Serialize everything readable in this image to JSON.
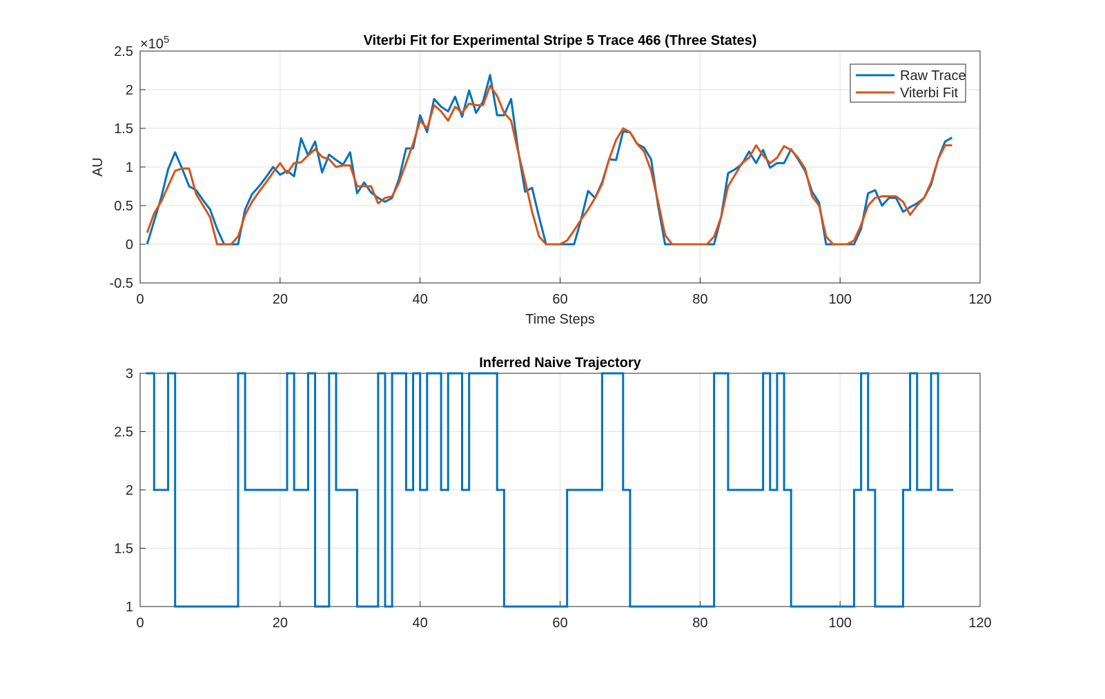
{
  "chart_data": [
    {
      "type": "line",
      "title": "Viterbi Fit for Experimental Stripe 5 Trace 466 (Three States)",
      "xlabel": "Time Steps",
      "ylabel": "AU",
      "y_multiplier": {
        "base": "×10",
        "power": "5"
      },
      "xlim": [
        0,
        120
      ],
      "xticks": [
        0,
        20,
        40,
        60,
        80,
        100,
        120
      ],
      "ylim": [
        -0.5,
        2.5
      ],
      "yticks": [
        -0.5,
        0,
        0.5,
        1,
        1.5,
        2,
        2.5
      ],
      "grid": true,
      "legend": "upper right",
      "x": [
        1,
        2,
        3,
        4,
        5,
        6,
        7,
        8,
        9,
        10,
        11,
        12,
        13,
        14,
        15,
        16,
        17,
        18,
        19,
        20,
        21,
        22,
        23,
        24,
        25,
        26,
        27,
        28,
        29,
        30,
        31,
        32,
        33,
        34,
        35,
        36,
        37,
        38,
        39,
        40,
        41,
        42,
        43,
        44,
        45,
        46,
        47,
        48,
        49,
        50,
        51,
        52,
        53,
        54,
        55,
        56,
        57,
        58,
        59,
        60,
        61,
        62,
        63,
        64,
        65,
        66,
        67,
        68,
        69,
        70,
        71,
        72,
        73,
        74,
        75,
        76,
        77,
        78,
        79,
        80,
        81,
        82,
        83,
        84,
        85,
        86,
        87,
        88,
        89,
        90,
        91,
        92,
        93,
        94,
        95,
        96,
        97,
        98,
        99,
        100,
        101,
        102,
        103,
        104,
        105,
        106,
        107,
        108,
        109,
        110,
        111,
        112,
        113,
        114,
        115,
        116
      ],
      "series": [
        {
          "name": "Raw Trace",
          "color": "#0072bd",
          "values": [
            0,
            0.3,
            0.6,
            0.97,
            1.19,
            0.98,
            0.75,
            0.7,
            0.57,
            0.45,
            0.2,
            0,
            0,
            0,
            0.45,
            0.65,
            0.75,
            0.87,
            1.0,
            0.9,
            0.95,
            0.88,
            1.37,
            1.15,
            1.33,
            0.93,
            1.16,
            1.09,
            1.03,
            1.19,
            0.66,
            0.8,
            0.67,
            0.6,
            0.55,
            0.6,
            0.85,
            1.24,
            1.24,
            1.67,
            1.45,
            1.88,
            1.78,
            1.72,
            1.91,
            1.65,
            1.99,
            1.7,
            1.85,
            2.19,
            1.67,
            1.67,
            1.88,
            1.22,
            0.68,
            0.73,
            0.35,
            0,
            0,
            0,
            0,
            0,
            0.32,
            0.69,
            0.6,
            0.8,
            1.1,
            1.09,
            1.46,
            1.45,
            1.3,
            1.25,
            1.1,
            0.5,
            0,
            0,
            0,
            0,
            0,
            0,
            0,
            0,
            0.35,
            0.92,
            0.97,
            1.04,
            1.2,
            1.05,
            1.22,
            0.99,
            1.05,
            1.05,
            1.23,
            1.1,
            0.95,
            0.68,
            0.54,
            0,
            0,
            0,
            0,
            0,
            0.2,
            0.66,
            0.7,
            0.5,
            0.6,
            0.6,
            0.42,
            0.48,
            0.53,
            0.6,
            0.77,
            1.1,
            1.33,
            1.38
          ]
        },
        {
          "name": "Viterbi Fit",
          "color": "#d95319",
          "values": [
            0.15,
            0.4,
            0.55,
            0.75,
            0.95,
            0.98,
            0.98,
            0.65,
            0.5,
            0.35,
            0,
            0,
            0,
            0.1,
            0.38,
            0.55,
            0.68,
            0.8,
            0.93,
            1.05,
            0.92,
            1.05,
            1.06,
            1.15,
            1.23,
            1.13,
            1.1,
            1.0,
            1.02,
            1.02,
            0.75,
            0.75,
            0.75,
            0.53,
            0.6,
            0.62,
            0.8,
            1.05,
            1.3,
            1.6,
            1.5,
            1.8,
            1.72,
            1.6,
            1.78,
            1.7,
            1.82,
            1.8,
            1.8,
            2.05,
            1.92,
            1.7,
            1.6,
            1.2,
            0.82,
            0.42,
            0.1,
            0,
            0,
            0,
            0.05,
            0.18,
            0.32,
            0.45,
            0.6,
            0.78,
            1.1,
            1.35,
            1.5,
            1.45,
            1.3,
            1.2,
            0.95,
            0.55,
            0.12,
            0,
            0,
            0,
            0,
            0,
            0,
            0.1,
            0.35,
            0.75,
            0.9,
            1.05,
            1.12,
            1.28,
            1.15,
            1.05,
            1.12,
            1.27,
            1.22,
            1.12,
            0.98,
            0.62,
            0.5,
            0.1,
            0,
            0,
            0,
            0.05,
            0.25,
            0.5,
            0.6,
            0.62,
            0.62,
            0.62,
            0.55,
            0.38,
            0.5,
            0.6,
            0.8,
            1.1,
            1.28,
            1.28
          ]
        }
      ]
    },
    {
      "type": "stairs",
      "title": "Inferred Naive Trajectory",
      "xlim": [
        0,
        120
      ],
      "xticks": [
        0,
        20,
        40,
        60,
        80,
        100,
        120
      ],
      "ylim": [
        1,
        3
      ],
      "yticks": [
        1,
        1.5,
        2,
        2.5,
        3
      ],
      "grid": true,
      "x": [
        1,
        2,
        3,
        4,
        5,
        6,
        7,
        8,
        9,
        10,
        11,
        12,
        13,
        14,
        15,
        16,
        17,
        18,
        19,
        20,
        21,
        22,
        23,
        24,
        25,
        26,
        27,
        28,
        29,
        30,
        31,
        32,
        33,
        34,
        35,
        36,
        37,
        38,
        39,
        40,
        41,
        42,
        43,
        44,
        45,
        46,
        47,
        48,
        49,
        50,
        51,
        52,
        53,
        54,
        55,
        56,
        57,
        58,
        59,
        60,
        61,
        62,
        63,
        64,
        65,
        66,
        67,
        68,
        69,
        70,
        71,
        72,
        73,
        74,
        75,
        76,
        77,
        78,
        79,
        80,
        81,
        82,
        83,
        84,
        85,
        86,
        87,
        88,
        89,
        90,
        91,
        92,
        93,
        94,
        95,
        96,
        97,
        98,
        99,
        100,
        101,
        102,
        103,
        104,
        105,
        106,
        107,
        108,
        109,
        110,
        111,
        112,
        113,
        114,
        115,
        116
      ],
      "color": "#0072bd",
      "values": [
        3,
        2,
        2,
        3,
        1,
        1,
        1,
        1,
        1,
        1,
        1,
        1,
        1,
        3,
        2,
        2,
        2,
        2,
        2,
        2,
        3,
        2,
        2,
        3,
        1,
        1,
        3,
        2,
        2,
        2,
        1,
        1,
        1,
        3,
        1,
        3,
        3,
        2,
        3,
        2,
        3,
        3,
        2,
        3,
        3,
        2,
        3,
        3,
        3,
        3,
        2,
        1,
        1,
        1,
        1,
        1,
        1,
        1,
        1,
        1,
        2,
        2,
        2,
        2,
        2,
        3,
        3,
        3,
        2,
        1,
        1,
        1,
        1,
        1,
        1,
        1,
        1,
        1,
        1,
        1,
        1,
        3,
        3,
        2,
        2,
        2,
        2,
        2,
        3,
        2,
        3,
        2,
        1,
        1,
        1,
        1,
        1,
        1,
        1,
        1,
        1,
        2,
        3,
        2,
        1,
        1,
        1,
        1,
        2,
        3,
        2,
        2,
        3,
        2,
        2,
        2
      ]
    }
  ]
}
